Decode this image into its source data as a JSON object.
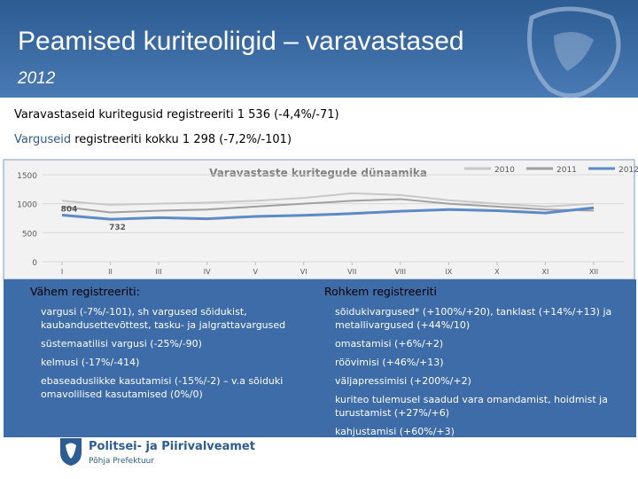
{
  "header": {
    "title": "Peamised kuriteoliigid – varavastased",
    "subtitle": "2012"
  },
  "intro": {
    "line1": "Varavastaseid kuritegusid registreeriti 1 536 (-4,4%/-71)",
    "line2_highlight": "Varguseid",
    "line2_rest": "registreeriti kokku 1 298 (-7,2%/-101)"
  },
  "chart_data": {
    "type": "line",
    "title": "Varavastaste kuritegude dünaamika",
    "categories": [
      "I",
      "II",
      "III",
      "IV",
      "V",
      "VI",
      "VII",
      "VIII",
      "IX",
      "X",
      "XI",
      "XII"
    ],
    "series": [
      {
        "name": "2010",
        "color": "#c8c8c8",
        "values": [
          1050,
          980,
          1000,
          1020,
          1050,
          1100,
          1180,
          1150,
          1060,
          1000,
          950,
          1000
        ]
      },
      {
        "name": "2011",
        "color": "#a0a0a0",
        "values": [
          950,
          850,
          880,
          900,
          950,
          1000,
          1050,
          1080,
          1000,
          950,
          900,
          880
        ]
      },
      {
        "name": "2012",
        "color": "#5b8ac6",
        "values": [
          804,
          732,
          760,
          740,
          780,
          800,
          830,
          870,
          900,
          880,
          840,
          930
        ]
      }
    ],
    "ylim": [
      0,
      1500
    ],
    "yticks": [
      0,
      500,
      1000,
      1500
    ],
    "grid": true
  },
  "left_panel": {
    "heading": "Vähem registreeriti:",
    "items": [
      "vargusi (-7%/-101), sh vargused sõidukist, kaubandusettevõttest, tasku- ja jalgrattavargused",
      "süstemaatilisi vargusi (-25%/-90)",
      "kelmusi (-17%/-414)",
      "ebaseaduslikke kasutamisi (-15%/-2) – v.a sõiduki omavolilised kasutamised (0%/0)"
    ]
  },
  "right_panel": {
    "heading": "Rohkem registreeriti",
    "items": [
      "sõidukivargused* (+100%/+20), tanklast (+14%/+13) ja metallivargused (+44%/10)",
      "omastamisi (+6%/+2)",
      "röövimisi (+46%/+13)",
      "väljapressimisi (+200%/+2)",
      "kuriteo tulemusel saadud vara omandamist, hoidmist ja turustamist (+27%/+6)",
      "kahjustamisi (+60%/+3)"
    ]
  },
  "footer": {
    "org": "Politsei- ja Piirivalveamet",
    "unit": "Põhja Prefektuur"
  }
}
